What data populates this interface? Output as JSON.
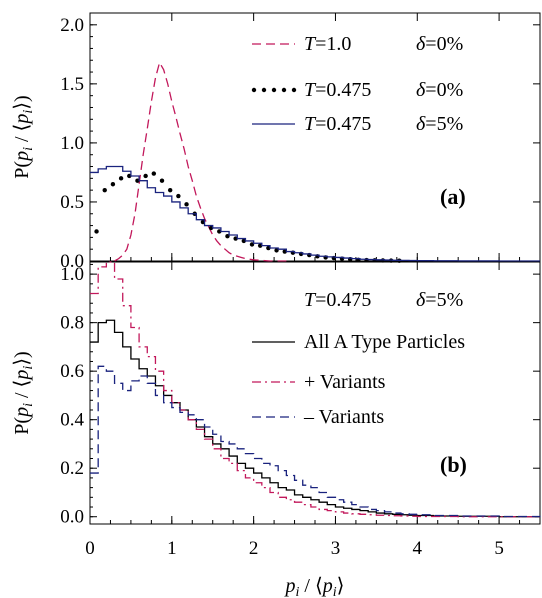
{
  "chart_data": [
    {
      "type": "line",
      "panel_label": "(a)",
      "ylabel": "P(p_i / ⟨p_i⟩)",
      "xlim": [
        0,
        5.5
      ],
      "ylim": [
        0,
        2.1
      ],
      "yticks": [
        "0.0",
        "0.5",
        "1.0",
        "1.5",
        "2.0"
      ],
      "legend_position": "top-right",
      "series": [
        {
          "name": "T=1.0 δ=0%",
          "legend": {
            "var": "T",
            "val": "=1.0",
            "dvar": "δ",
            "dval": "=0%"
          },
          "style": "dashed",
          "color": "#c2185b",
          "x": [
            0.3,
            0.35,
            0.4,
            0.45,
            0.5,
            0.55,
            0.6,
            0.65,
            0.7,
            0.75,
            0.8,
            0.85,
            0.9,
            0.95,
            1.0,
            1.05,
            1.1,
            1.15,
            1.2,
            1.25,
            1.3,
            1.35,
            1.4,
            1.45,
            1.5,
            1.55,
            1.6,
            1.65,
            1.7,
            1.75,
            1.8,
            1.85,
            1.9,
            1.95,
            2.0,
            2.1,
            2.2,
            2.4
          ],
          "y": [
            0.0,
            0.02,
            0.05,
            0.1,
            0.22,
            0.4,
            0.65,
            0.9,
            1.12,
            1.35,
            1.55,
            1.68,
            1.62,
            1.5,
            1.35,
            1.22,
            1.08,
            0.95,
            0.8,
            0.68,
            0.55,
            0.45,
            0.36,
            0.29,
            0.22,
            0.17,
            0.13,
            0.1,
            0.07,
            0.05,
            0.04,
            0.03,
            0.02,
            0.015,
            0.01,
            0.005,
            0.0,
            0.0
          ]
        },
        {
          "name": "T=0.475 δ=0%",
          "legend": {
            "var": "T",
            "val": "=0.475",
            "dvar": "δ",
            "dval": "=0%"
          },
          "style": "dotted",
          "color": "#000000",
          "x": [
            0.08,
            0.18,
            0.28,
            0.38,
            0.48,
            0.58,
            0.68,
            0.78,
            0.88,
            0.98,
            1.08,
            1.18,
            1.28,
            1.38,
            1.48,
            1.58,
            1.68,
            1.78,
            1.88,
            1.98,
            2.08,
            2.18,
            2.28,
            2.38,
            2.48,
            2.58,
            2.68,
            2.78,
            2.88,
            2.98,
            3.08,
            3.18,
            3.28,
            3.38,
            3.48,
            3.58,
            3.68,
            3.78
          ],
          "y": [
            0.25,
            0.6,
            0.65,
            0.7,
            0.72,
            0.68,
            0.72,
            0.74,
            0.68,
            0.6,
            0.55,
            0.48,
            0.4,
            0.33,
            0.28,
            0.25,
            0.21,
            0.19,
            0.17,
            0.14,
            0.13,
            0.11,
            0.09,
            0.08,
            0.07,
            0.06,
            0.05,
            0.04,
            0.03,
            0.025,
            0.02,
            0.015,
            0.01,
            0.008,
            0.006,
            0.005,
            0.004,
            0.003
          ]
        },
        {
          "name": "T=0.475 δ=5%",
          "legend": {
            "var": "T",
            "val": "=0.475",
            "dvar": "δ",
            "dval": "=5%"
          },
          "style": "steps",
          "color": "#1a237e",
          "x": [
            0.0,
            0.1,
            0.2,
            0.3,
            0.4,
            0.5,
            0.6,
            0.7,
            0.8,
            0.9,
            1.0,
            1.1,
            1.2,
            1.3,
            1.4,
            1.5,
            1.6,
            1.7,
            1.8,
            1.9,
            2.0,
            2.1,
            2.2,
            2.3,
            2.4,
            2.5,
            2.6,
            2.7,
            2.8,
            2.9,
            3.0,
            3.1,
            3.2,
            3.3,
            3.4,
            3.5,
            3.6,
            3.7,
            3.8,
            3.9,
            4.0,
            4.2,
            4.5,
            5.0,
            5.5
          ],
          "y": [
            0.75,
            0.78,
            0.8,
            0.8,
            0.76,
            0.72,
            0.68,
            0.62,
            0.58,
            0.55,
            0.5,
            0.45,
            0.4,
            0.35,
            0.3,
            0.28,
            0.25,
            0.22,
            0.19,
            0.17,
            0.15,
            0.13,
            0.11,
            0.1,
            0.08,
            0.07,
            0.06,
            0.05,
            0.04,
            0.035,
            0.03,
            0.025,
            0.02,
            0.015,
            0.012,
            0.01,
            0.008,
            0.006,
            0.005,
            0.004,
            0.003,
            0.002,
            0.001,
            0.0,
            0.0
          ]
        }
      ]
    },
    {
      "type": "line",
      "panel_label": "(b)",
      "xlabel": "p_i / ⟨p_i⟩",
      "ylabel": "P(p_i / ⟨p_i⟩)",
      "xlim": [
        0,
        5.5
      ],
      "ylim": [
        -0.03,
        1.05
      ],
      "xticks": [
        "0",
        "1",
        "2",
        "3",
        "4",
        "5"
      ],
      "yticks": [
        "0.0",
        "0.2",
        "0.4",
        "0.6",
        "0.8",
        "1.0"
      ],
      "header": {
        "var": "T",
        "val": "=0.475",
        "dvar": "δ",
        "dval": "=5%"
      },
      "legend_position": "top-right",
      "series": [
        {
          "name": "All A Type Particles",
          "style": "steps",
          "color": "#000000",
          "x": [
            0.0,
            0.1,
            0.2,
            0.3,
            0.4,
            0.5,
            0.6,
            0.7,
            0.8,
            0.9,
            1.0,
            1.1,
            1.2,
            1.3,
            1.4,
            1.5,
            1.6,
            1.7,
            1.8,
            1.9,
            2.0,
            2.1,
            2.2,
            2.3,
            2.4,
            2.5,
            2.6,
            2.7,
            2.8,
            2.9,
            3.0,
            3.1,
            3.2,
            3.3,
            3.4,
            3.5,
            3.6,
            3.7,
            3.8,
            3.9,
            4.0,
            4.2,
            4.5,
            5.0,
            5.5
          ],
          "y": [
            0.72,
            0.8,
            0.81,
            0.76,
            0.7,
            0.65,
            0.61,
            0.58,
            0.54,
            0.5,
            0.47,
            0.44,
            0.4,
            0.37,
            0.33,
            0.3,
            0.28,
            0.25,
            0.22,
            0.2,
            0.18,
            0.16,
            0.14,
            0.12,
            0.11,
            0.09,
            0.08,
            0.07,
            0.06,
            0.05,
            0.04,
            0.035,
            0.03,
            0.025,
            0.02,
            0.015,
            0.012,
            0.01,
            0.008,
            0.006,
            0.005,
            0.003,
            0.002,
            0.0,
            0.0
          ]
        },
        {
          "name": "+ Variants",
          "style": "dashdot",
          "color": "#c2185b",
          "x": [
            0.0,
            0.1,
            0.2,
            0.3,
            0.4,
            0.5,
            0.6,
            0.7,
            0.8,
            0.9,
            1.0,
            1.1,
            1.2,
            1.3,
            1.4,
            1.5,
            1.6,
            1.7,
            1.8,
            1.9,
            2.0,
            2.1,
            2.2,
            2.3,
            2.4,
            2.5,
            2.6,
            2.7,
            2.8,
            2.9,
            3.0,
            3.1,
            3.2,
            3.3,
            3.4,
            3.5,
            3.6,
            3.7,
            3.8,
            3.9,
            4.0,
            4.2,
            4.5,
            5.0,
            5.5
          ],
          "y": [
            0.92,
            1.03,
            1.05,
            0.98,
            0.87,
            0.78,
            0.7,
            0.66,
            0.6,
            0.52,
            0.47,
            0.44,
            0.4,
            0.36,
            0.32,
            0.28,
            0.24,
            0.22,
            0.19,
            0.16,
            0.14,
            0.12,
            0.1,
            0.08,
            0.07,
            0.06,
            0.05,
            0.04,
            0.03,
            0.025,
            0.02,
            0.015,
            0.012,
            0.01,
            0.008,
            0.006,
            0.005,
            0.004,
            0.003,
            0.002,
            0.001,
            0.001,
            0.0,
            0.0,
            0.0
          ]
        },
        {
          "name": "– Variants",
          "style": "dashed",
          "color": "#1a237e",
          "x": [
            0.0,
            0.1,
            0.2,
            0.3,
            0.4,
            0.5,
            0.6,
            0.7,
            0.8,
            0.9,
            1.0,
            1.1,
            1.2,
            1.3,
            1.4,
            1.5,
            1.6,
            1.7,
            1.8,
            1.9,
            2.0,
            2.1,
            2.2,
            2.3,
            2.4,
            2.5,
            2.6,
            2.7,
            2.8,
            2.9,
            3.0,
            3.1,
            3.2,
            3.3,
            3.4,
            3.5,
            3.6,
            3.7,
            3.8,
            3.9,
            4.0,
            4.2,
            4.5,
            5.0,
            5.5
          ],
          "y": [
            0.18,
            0.62,
            0.6,
            0.55,
            0.52,
            0.56,
            0.58,
            0.55,
            0.5,
            0.47,
            0.45,
            0.43,
            0.42,
            0.4,
            0.37,
            0.34,
            0.31,
            0.3,
            0.28,
            0.26,
            0.24,
            0.22,
            0.21,
            0.19,
            0.17,
            0.15,
            0.13,
            0.12,
            0.1,
            0.08,
            0.07,
            0.06,
            0.05,
            0.04,
            0.03,
            0.025,
            0.02,
            0.015,
            0.012,
            0.01,
            0.008,
            0.005,
            0.003,
            0.001,
            0.0
          ]
        }
      ]
    }
  ]
}
